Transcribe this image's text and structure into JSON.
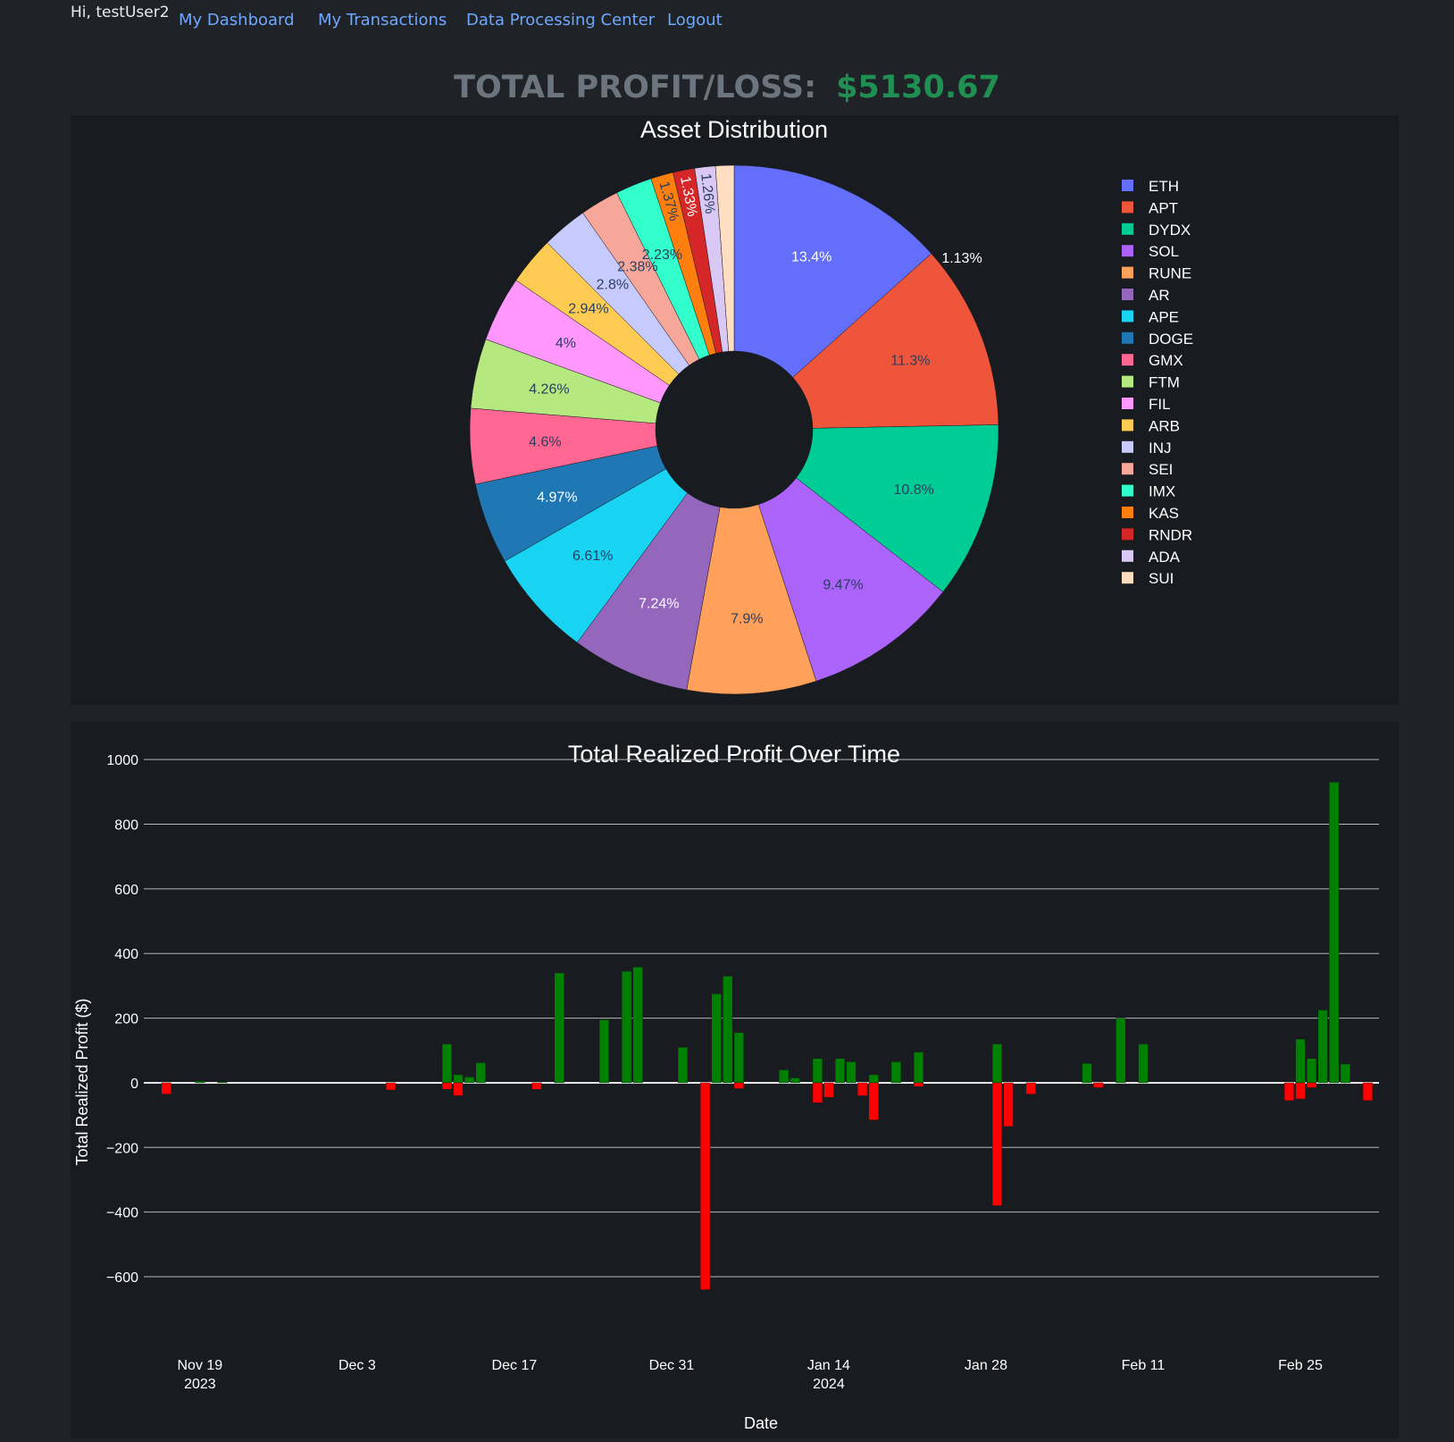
{
  "header": {
    "greeting": "Hi, testUser2",
    "nav": [
      {
        "label": "My Dashboard"
      },
      {
        "label": "My Transactions"
      },
      {
        "label": "Data Processing Center"
      },
      {
        "label": "Logout"
      }
    ]
  },
  "summary": {
    "label": "TOTAL PROFIT/LOSS:",
    "value": "$5130.67",
    "value_color": "#1f8f52"
  },
  "chart_data": [
    {
      "type": "pie",
      "title": "Asset Distribution",
      "hole": true,
      "legend_position": "right",
      "slices": [
        {
          "label": "ETH",
          "value": 13.4,
          "text": "13.4%",
          "color": "#636efa"
        },
        {
          "label": "APT",
          "value": 11.3,
          "text": "11.3%",
          "color": "#ef553b"
        },
        {
          "label": "DYDX",
          "value": 10.8,
          "text": "10.8%",
          "color": "#00cc96"
        },
        {
          "label": "SOL",
          "value": 9.47,
          "text": "9.47%",
          "color": "#ab63fa"
        },
        {
          "label": "RUNE",
          "value": 7.9,
          "text": "7.9%",
          "color": "#ffa15a"
        },
        {
          "label": "AR",
          "value": 7.24,
          "text": "7.24%",
          "color": "#9467bd"
        },
        {
          "label": "APE",
          "value": 6.61,
          "text": "6.61%",
          "color": "#19d3f3"
        },
        {
          "label": "DOGE",
          "value": 4.97,
          "text": "4.97%",
          "color": "#1f77b4"
        },
        {
          "label": "GMX",
          "value": 4.6,
          "text": "4.6%",
          "color": "#ff6692"
        },
        {
          "label": "FTM",
          "value": 4.26,
          "text": "4.26%",
          "color": "#b6e880"
        },
        {
          "label": "FIL",
          "value": 4.0,
          "text": "4%",
          "color": "#ff97ff"
        },
        {
          "label": "ARB",
          "value": 2.94,
          "text": "2.94%",
          "color": "#fecb52"
        },
        {
          "label": "INJ",
          "value": 2.8,
          "text": "2.8%",
          "color": "#c6cafd"
        },
        {
          "label": "SEI",
          "value": 2.38,
          "text": "2.38%",
          "color": "#f7a799"
        },
        {
          "label": "IMX",
          "value": 2.23,
          "text": "2.23%",
          "color": "#33ffcc"
        },
        {
          "label": "KAS",
          "value": 1.37,
          "text": "1.37%",
          "color": "#fe7f0e"
        },
        {
          "label": "RNDR",
          "value": 1.33,
          "text": "1.33%",
          "color": "#d62728"
        },
        {
          "label": "ADA",
          "value": 1.26,
          "text": "1.26%",
          "color": "#d9c8f4"
        },
        {
          "label": "SUI",
          "value": 1.13,
          "text": "1.13%",
          "color": "#ffddc1"
        }
      ]
    },
    {
      "type": "bar",
      "title": "Total Realized Profit Over Time",
      "xlabel": "Date",
      "ylabel": "Total Realized Profit ($)",
      "ylim": [
        -680,
        1050
      ],
      "yticks": [
        1000,
        800,
        600,
        400,
        200,
        0,
        -200,
        -400,
        -600
      ],
      "ytick_labels": [
        "1000",
        "800",
        "600",
        "400",
        "200",
        "0",
        "−200",
        "−400",
        "−600"
      ],
      "xlim": [
        "2023-11-14",
        "2024-03-03"
      ],
      "xticks": [
        {
          "date": "2023-11-19",
          "label": "Nov 19",
          "sub": "2023"
        },
        {
          "date": "2023-12-03",
          "label": "Dec 3",
          "sub": ""
        },
        {
          "date": "2023-12-17",
          "label": "Dec 17",
          "sub": ""
        },
        {
          "date": "2023-12-31",
          "label": "Dec 31",
          "sub": ""
        },
        {
          "date": "2024-01-14",
          "label": "Jan 14",
          "sub": "2024"
        },
        {
          "date": "2024-01-28",
          "label": "Jan 28",
          "sub": ""
        },
        {
          "date": "2024-02-11",
          "label": "Feb 11",
          "sub": ""
        },
        {
          "date": "2024-02-25",
          "label": "Feb 25",
          "sub": ""
        }
      ],
      "grid": true,
      "positive_color": "#008000",
      "negative_color": "#ff0000",
      "bars": [
        {
          "date": "2023-11-16",
          "value": -35
        },
        {
          "date": "2023-11-19",
          "value": 5
        },
        {
          "date": "2023-11-21",
          "value": 3
        },
        {
          "date": "2023-12-06",
          "value": -22
        },
        {
          "date": "2023-12-11",
          "value": 120
        },
        {
          "date": "2023-12-11",
          "value": -20
        },
        {
          "date": "2023-12-12",
          "value": 25
        },
        {
          "date": "2023-12-12",
          "value": -40
        },
        {
          "date": "2023-12-13",
          "value": 18
        },
        {
          "date": "2023-12-14",
          "value": 62
        },
        {
          "date": "2023-12-19",
          "value": -20
        },
        {
          "date": "2023-12-21",
          "value": 340
        },
        {
          "date": "2023-12-25",
          "value": 195
        },
        {
          "date": "2023-12-27",
          "value": 345
        },
        {
          "date": "2023-12-28",
          "value": 358
        },
        {
          "date": "2024-01-01",
          "value": 110
        },
        {
          "date": "2024-01-03",
          "value": -640
        },
        {
          "date": "2024-01-04",
          "value": 275
        },
        {
          "date": "2024-01-05",
          "value": 330
        },
        {
          "date": "2024-01-06",
          "value": 155
        },
        {
          "date": "2024-01-06",
          "value": -18
        },
        {
          "date": "2024-01-10",
          "value": 40
        },
        {
          "date": "2024-01-11",
          "value": 15
        },
        {
          "date": "2024-01-13",
          "value": 75
        },
        {
          "date": "2024-01-13",
          "value": -62
        },
        {
          "date": "2024-01-14",
          "value": -45
        },
        {
          "date": "2024-01-15",
          "value": 75
        },
        {
          "date": "2024-01-16",
          "value": 65
        },
        {
          "date": "2024-01-17",
          "value": -40
        },
        {
          "date": "2024-01-18",
          "value": 25
        },
        {
          "date": "2024-01-18",
          "value": -115
        },
        {
          "date": "2024-01-20",
          "value": 65
        },
        {
          "date": "2024-01-22",
          "value": 95
        },
        {
          "date": "2024-01-22",
          "value": -12
        },
        {
          "date": "2024-01-29",
          "value": 120
        },
        {
          "date": "2024-01-29",
          "value": -380
        },
        {
          "date": "2024-01-30",
          "value": -135
        },
        {
          "date": "2024-02-01",
          "value": -35
        },
        {
          "date": "2024-02-06",
          "value": 60
        },
        {
          "date": "2024-02-07",
          "value": -15
        },
        {
          "date": "2024-02-09",
          "value": 200
        },
        {
          "date": "2024-02-11",
          "value": 120
        },
        {
          "date": "2024-02-24",
          "value": -55
        },
        {
          "date": "2024-02-25",
          "value": 135
        },
        {
          "date": "2024-02-25",
          "value": -50
        },
        {
          "date": "2024-02-26",
          "value": 75
        },
        {
          "date": "2024-02-26",
          "value": -15
        },
        {
          "date": "2024-02-27",
          "value": 225
        },
        {
          "date": "2024-02-28",
          "value": 930
        },
        {
          "date": "2024-02-29",
          "value": 58
        },
        {
          "date": "2024-03-02",
          "value": -55
        }
      ]
    }
  ]
}
